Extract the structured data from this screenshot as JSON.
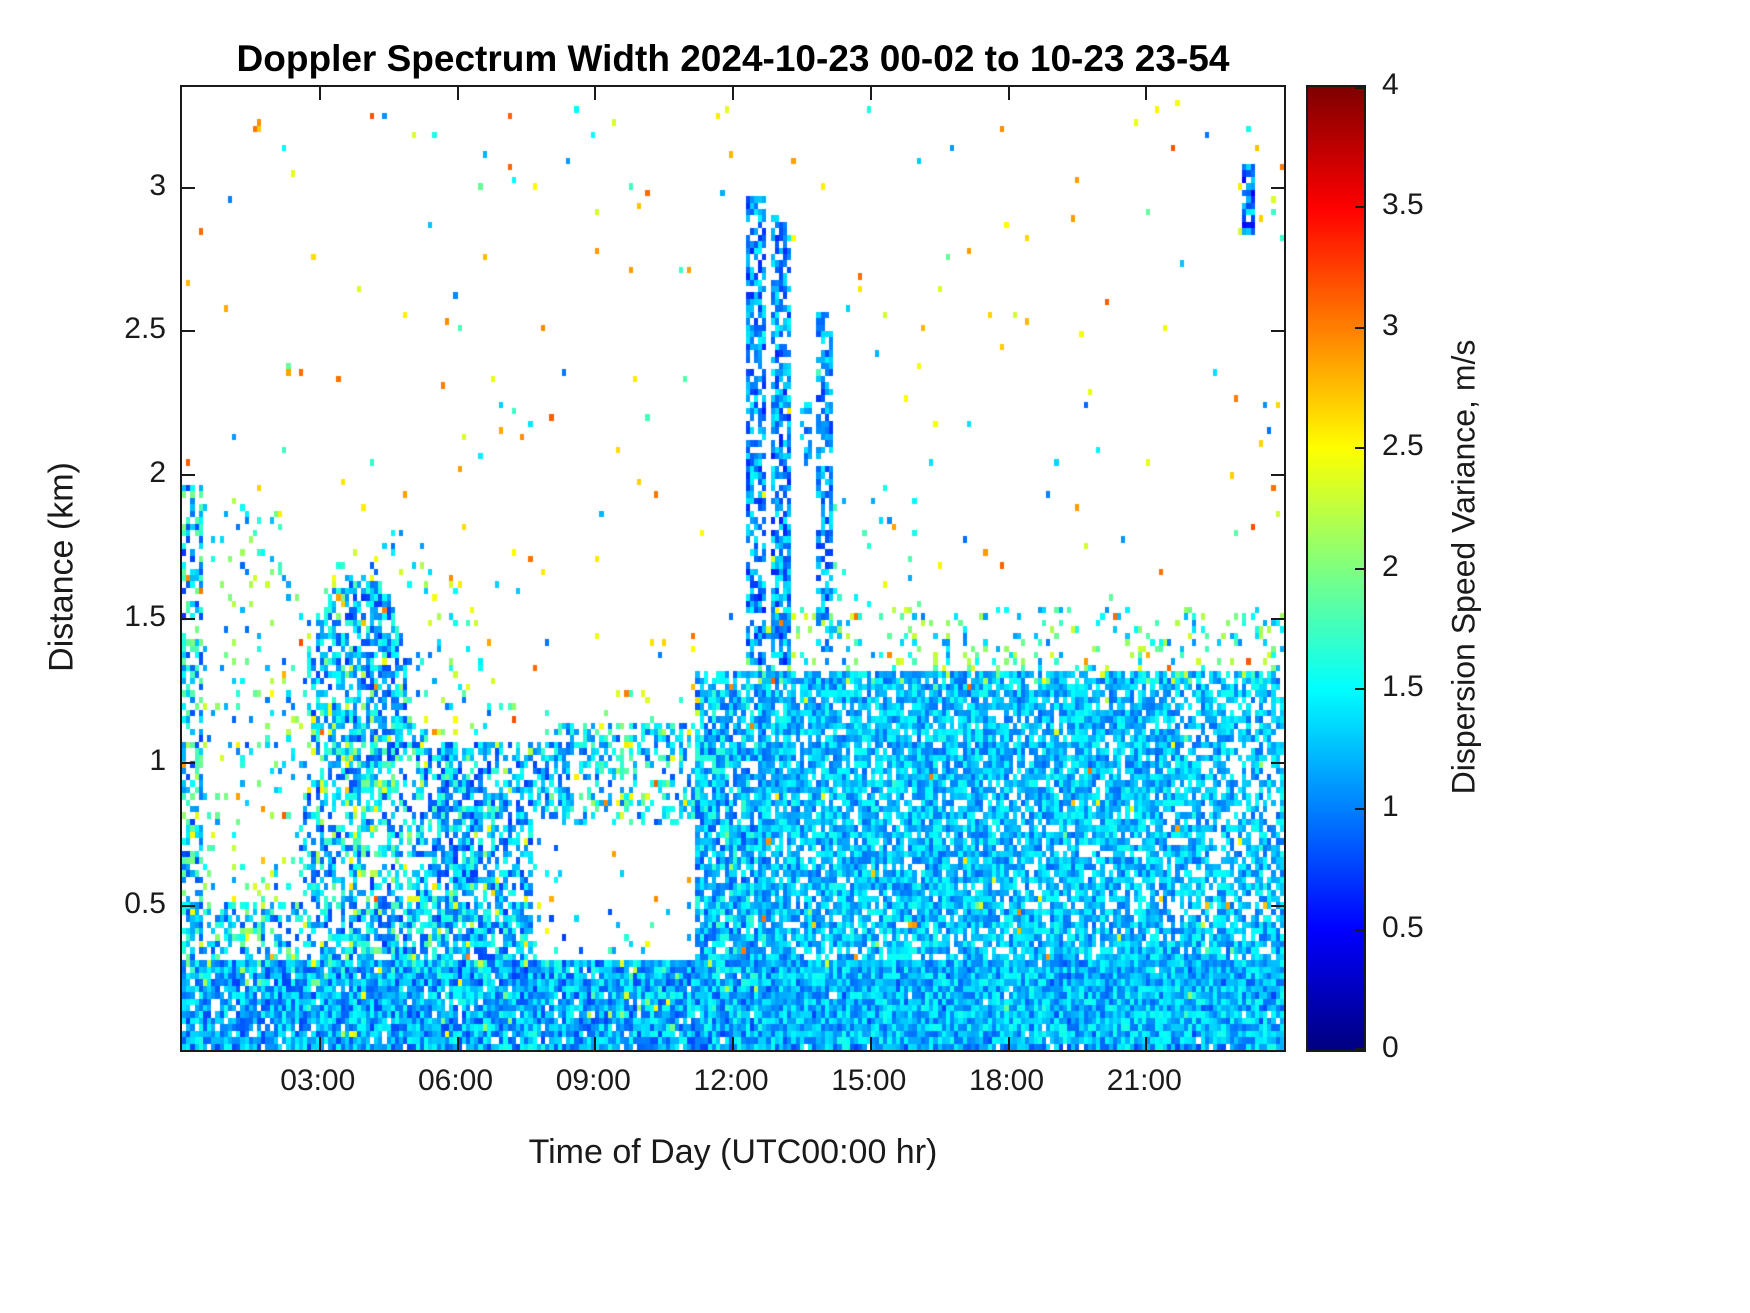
{
  "page": {
    "background": "#ffffff"
  },
  "chart_data": {
    "type": "heatmap",
    "title": "Doppler Spectrum Width 2024-10-23 00-02 to 10-23 23-54",
    "xlabel": "Time of Day (UTC00:00 hr)",
    "ylabel": "Distance (km)",
    "colorbar_label": "Dispersion Speed Variance, m/s",
    "colormap": "jet",
    "grid_lines": false,
    "legend": "colorbar-right",
    "x_range_hours": [
      0,
      24
    ],
    "y_range_km": [
      0,
      3.35
    ],
    "colorbar_range": [
      0,
      4
    ],
    "x_ticks": [
      {
        "label": "03:00",
        "value": 3
      },
      {
        "label": "06:00",
        "value": 6
      },
      {
        "label": "09:00",
        "value": 9
      },
      {
        "label": "12:00",
        "value": 12
      },
      {
        "label": "15:00",
        "value": 15
      },
      {
        "label": "18:00",
        "value": 18
      },
      {
        "label": "21:00",
        "value": 21
      }
    ],
    "y_ticks": [
      {
        "label": "0.5",
        "value": 0.5
      },
      {
        "label": "1",
        "value": 1
      },
      {
        "label": "1.5",
        "value": 1.5
      },
      {
        "label": "2",
        "value": 2
      },
      {
        "label": "2.5",
        "value": 2.5
      },
      {
        "label": "3",
        "value": 3
      }
    ],
    "colorbar_ticks": [
      {
        "label": "0",
        "value": 0
      },
      {
        "label": "0.5",
        "value": 0.5
      },
      {
        "label": "1",
        "value": 1
      },
      {
        "label": "1.5",
        "value": 1.5
      },
      {
        "label": "2",
        "value": 2
      },
      {
        "label": "2.5",
        "value": 2.5
      },
      {
        "label": "3",
        "value": 3
      },
      {
        "label": "3.5",
        "value": 3.5
      },
      {
        "label": "4",
        "value": 4
      }
    ],
    "grid": {
      "cols": 264,
      "rows": 150,
      "seed": 20241023
    },
    "regions": [
      {
        "name": "surface-layer",
        "shape": "rect",
        "t": [
          0,
          24
        ],
        "z": [
          0.02,
          0.3
        ],
        "density": 0.93,
        "v": [
          0.75,
          1.6
        ]
      },
      {
        "name": "low-speckle",
        "shape": "rect",
        "t": [
          0,
          12.6
        ],
        "z": [
          0.28,
          0.5
        ],
        "density": 0.38,
        "v": [
          0.8,
          1.8
        ]
      },
      {
        "name": "early-plume",
        "shape": "rect",
        "t": [
          0,
          0.45
        ],
        "z": [
          0.3,
          1.95
        ],
        "density": 0.5,
        "v": [
          0.7,
          2.0
        ]
      },
      {
        "name": "early-specks",
        "shape": "rect",
        "t": [
          0.3,
          2.5
        ],
        "z": [
          0.3,
          1.9
        ],
        "density": 0.09,
        "v": [
          0.8,
          2.4
        ]
      },
      {
        "name": "morning-arch-upper",
        "shape": "ellipse",
        "t": [
          2.7,
          4.9
        ],
        "z": [
          0.9,
          1.65
        ],
        "density": 0.6,
        "v": [
          0.7,
          1.7
        ]
      },
      {
        "name": "morning-arch-lower",
        "shape": "ellipse",
        "t": [
          2.5,
          6.5
        ],
        "z": [
          0.28,
          1.15
        ],
        "density": 0.42,
        "v": [
          0.7,
          1.8
        ]
      },
      {
        "name": "morning-arch-halo",
        "shape": "ellipse",
        "t": [
          2.3,
          6.9
        ],
        "z": [
          0.3,
          1.8
        ],
        "density": 0.1,
        "v": [
          0.8,
          2.5
        ]
      },
      {
        "name": "mid-morning-mass",
        "shape": "rect",
        "t": [
          5.6,
          8.4
        ],
        "z": [
          0.25,
          1.05
        ],
        "density": 0.55,
        "v": [
          0.7,
          1.7
        ]
      },
      {
        "name": "mid-morning-band",
        "shape": "rect",
        "t": [
          8.0,
          11.6
        ],
        "z": [
          0.78,
          1.12
        ],
        "density": 0.45,
        "v": [
          0.8,
          1.9
        ]
      },
      {
        "name": "mass-flecks",
        "shape": "rect",
        "t": [
          0,
          24
        ],
        "z": [
          0.05,
          1.25
        ],
        "density": 0.03,
        "v": [
          1.5,
          2.6
        ]
      },
      {
        "name": "late-morning-hole",
        "shape": "rect",
        "t": [
          7.65,
          11.35
        ],
        "z": [
          0.33,
          0.78
        ],
        "density": 0.93,
        "mode": "clear"
      },
      {
        "name": "noon-ramp",
        "shape": "rect",
        "t": [
          11.2,
          12.7
        ],
        "z": [
          0.07,
          1.3
        ],
        "density": 0.78,
        "v": [
          0.8,
          1.7
        ]
      },
      {
        "name": "afternoon-mass",
        "shape": "rect",
        "t": [
          12.6,
          24
        ],
        "z": [
          0.04,
          1.3
        ],
        "density": 0.82,
        "v": [
          0.9,
          1.6
        ]
      },
      {
        "name": "evening-thinning",
        "shape": "rect",
        "t": [
          21.6,
          24
        ],
        "z": [
          0.45,
          1.3
        ],
        "density": 0.22,
        "mode": "clear"
      },
      {
        "name": "mass-top-flecks",
        "shape": "rect",
        "t": [
          12.3,
          24
        ],
        "z": [
          1.28,
          1.52
        ],
        "density": 0.18,
        "v": [
          1.0,
          2.4
        ]
      },
      {
        "name": "afternoon-wisps",
        "shape": "rect",
        "t": [
          14.2,
          16.2
        ],
        "z": [
          1.5,
          1.95
        ],
        "density": 0.05,
        "v": [
          1.0,
          1.9
        ]
      },
      {
        "name": "noon-tower-a",
        "shape": "rect",
        "t": [
          12.35,
          12.65
        ],
        "z": [
          1.35,
          2.95
        ],
        "density": 0.65,
        "v": [
          0.6,
          1.5
        ]
      },
      {
        "name": "noon-tower-b",
        "shape": "rect",
        "t": [
          12.9,
          13.25
        ],
        "z": [
          1.35,
          2.9
        ],
        "density": 0.7,
        "v": [
          0.6,
          1.5
        ]
      },
      {
        "name": "noon-tower-d",
        "shape": "rect",
        "t": [
          13.5,
          13.65
        ],
        "z": [
          2.05,
          2.3
        ],
        "density": 0.5,
        "v": [
          0.8,
          1.5
        ]
      },
      {
        "name": "noon-tower-c",
        "shape": "rect",
        "t": [
          13.85,
          14.15
        ],
        "z": [
          1.4,
          2.55
        ],
        "density": 0.6,
        "v": [
          0.7,
          1.5
        ]
      },
      {
        "name": "upper-orange-noise",
        "shape": "rect",
        "t": [
          0,
          24
        ],
        "z": [
          0.3,
          3.3
        ],
        "density": 0.006,
        "v": [
          2.3,
          3.2
        ]
      },
      {
        "name": "upper-cyan-noise",
        "shape": "rect",
        "t": [
          0,
          24
        ],
        "z": [
          0.3,
          3.3
        ],
        "density": 0.003,
        "v": [
          0.9,
          1.9
        ]
      },
      {
        "name": "top-right-blob",
        "shape": "rect",
        "t": [
          23.1,
          23.35
        ],
        "z": [
          2.85,
          3.08
        ],
        "density": 0.85,
        "v": [
          0.4,
          1.5
        ]
      }
    ]
  }
}
